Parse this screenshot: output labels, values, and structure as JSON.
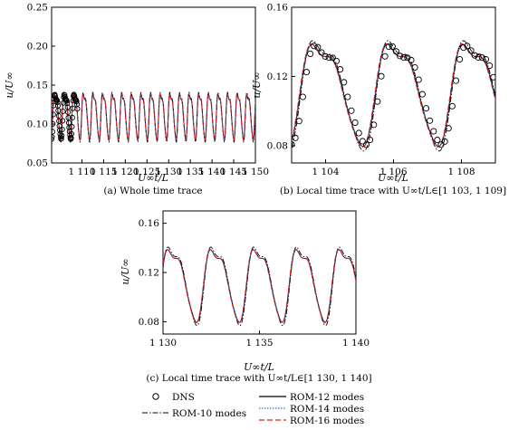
{
  "chart_data": [
    {
      "id": "a",
      "type": "line",
      "caption": "(a) Whole time trace",
      "xlabel": "U∞t/L",
      "ylabel": "u/U∞",
      "xlim": [
        1103,
        1150
      ],
      "ylim": [
        0.05,
        0.25
      ],
      "xticks": [
        1110,
        1115,
        1120,
        1125,
        1130,
        1135,
        1140,
        1145,
        1150
      ],
      "xtick_labels": [
        "1 110",
        "1 115",
        "1 120",
        "1 125",
        "1 130",
        "1 135",
        "1 140",
        "1 145",
        "1 150"
      ],
      "yticks": [
        0.05,
        0.1,
        0.15,
        0.2,
        0.25
      ],
      "ytick_labels": [
        "0.05",
        "0.10",
        "0.15",
        "0.20",
        "0.25"
      ],
      "period": 2.22,
      "dns_range": [
        1103,
        1109
      ],
      "grid": false
    },
    {
      "id": "b",
      "type": "line",
      "caption": "(b) Local time trace with U∞t/L∈[1 103, 1 109]",
      "xlabel": "U∞t/L",
      "ylabel": "u/U∞",
      "xlim": [
        1103,
        1109
      ],
      "ylim": [
        0.07,
        0.16
      ],
      "xticks": [
        1104,
        1106,
        1108
      ],
      "xtick_labels": [
        "1 104",
        "1 106",
        "1 108"
      ],
      "yticks": [
        0.08,
        0.12,
        0.16
      ],
      "ytick_labels": [
        "0.08",
        "0.12",
        "0.16"
      ],
      "period": 2.22,
      "dns_range": [
        1103,
        1109
      ],
      "grid": false
    },
    {
      "id": "c",
      "type": "line",
      "caption": "(c) Local time trace with U∞t/L∈[1 130, 1 140]",
      "xlabel": "U∞t/L",
      "ylabel": "u/U∞",
      "xlim": [
        1130,
        1140
      ],
      "ylim": [
        0.07,
        0.17
      ],
      "xticks": [
        1130,
        1135,
        1140
      ],
      "xtick_labels": [
        "1 130",
        "1 135",
        "1 140"
      ],
      "yticks": [
        0.08,
        0.12,
        0.16
      ],
      "ytick_labels": [
        "0.08",
        "0.12",
        "0.16"
      ],
      "period": 2.22,
      "dns_range": null,
      "grid": false
    }
  ],
  "legend": {
    "placement": "bottom-center",
    "entries": [
      {
        "name": "DNS",
        "style": "circle",
        "color": "#000000"
      },
      {
        "name": "ROM-10 modes",
        "style": "dash-dot",
        "color": "#000000"
      },
      {
        "name": "ROM-12 modes",
        "style": "solid",
        "color": "#000000"
      },
      {
        "name": "ROM-14 modes",
        "style": "dotted",
        "color": "#2a6fd6"
      },
      {
        "name": "ROM-16 modes",
        "style": "dashed",
        "color": "#d62020"
      }
    ]
  },
  "series_style": {
    "ROM-10 modes": {
      "amp": 1.08,
      "phase": 0.0
    },
    "ROM-12 modes": {
      "amp": 1.0,
      "phase": 0.05
    },
    "ROM-14 modes": {
      "amp": 1.0,
      "phase": 0.07
    },
    "ROM-16 modes": {
      "amp": 1.01,
      "phase": 0.1
    }
  }
}
